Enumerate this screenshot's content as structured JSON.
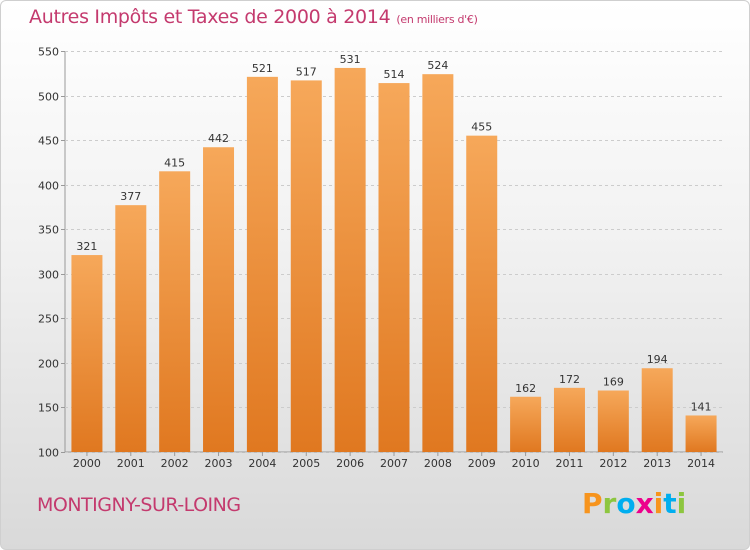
{
  "header": {
    "title": "Autres Impôts et Taxes de 2000 à 2014",
    "unit": "(en milliers d'€)"
  },
  "footer": {
    "town": "MONTIGNY-SUR-LOING",
    "brand_letters": [
      "P",
      "r",
      "o",
      "x",
      "i",
      "t",
      "i"
    ],
    "brand_colors": [
      "#f7941d",
      "#8dc63f",
      "#00aeef",
      "#ec008c",
      "#f7941d",
      "#00aeef",
      "#8dc63f"
    ]
  },
  "colors": {
    "title": "#c43a6e",
    "bar_light": "#f6a85a",
    "bar_dark": "#e07820"
  },
  "chart_data": {
    "type": "bar",
    "title": "Autres Impôts et Taxes de 2000 à 2014",
    "subtitle": "(en milliers d'€)",
    "categories": [
      "2000",
      "2001",
      "2002",
      "2003",
      "2004",
      "2005",
      "2006",
      "2007",
      "2008",
      "2009",
      "2010",
      "2011",
      "2012",
      "2013",
      "2014"
    ],
    "values": [
      321,
      377,
      415,
      442,
      521,
      517,
      531,
      514,
      524,
      455,
      162,
      172,
      169,
      194,
      141
    ],
    "ylim": [
      100,
      550
    ],
    "yticks": [
      100,
      150,
      200,
      250,
      300,
      350,
      400,
      450,
      500,
      550
    ],
    "grid": true,
    "data_labels": true,
    "xlabel": "",
    "ylabel": ""
  }
}
